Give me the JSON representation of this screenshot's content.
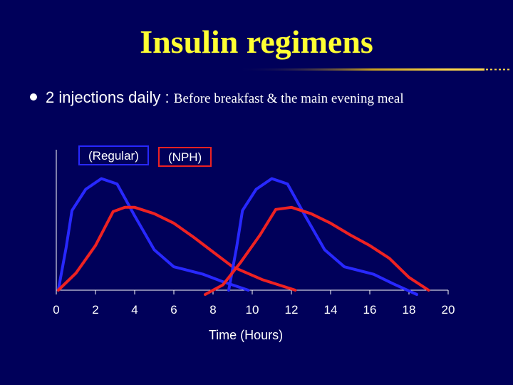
{
  "title": "Insulin regimens",
  "bullet": {
    "main": "2 injections daily : ",
    "detail": "Before breakfast  & the main evening meal"
  },
  "colors": {
    "background": "#00005a",
    "title": "#ffff33",
    "regular": "#2828ff",
    "nph": "#ee2222"
  },
  "chart_data": {
    "type": "line",
    "xlabel": "Time (Hours)",
    "ylabel": "",
    "xlim": [
      0,
      20
    ],
    "ylim": [
      0,
      1
    ],
    "xticks": [
      0,
      2,
      4,
      6,
      8,
      10,
      12,
      14,
      16,
      18,
      20
    ],
    "series": [
      {
        "name": "(Regular)",
        "color": "#2828ff",
        "points": [
          [
            0.1,
            0.0
          ],
          [
            0.5,
            0.4
          ],
          [
            0.8,
            0.75
          ],
          [
            1.5,
            0.95
          ],
          [
            2.3,
            1.05
          ],
          [
            3.1,
            1.0
          ],
          [
            4.0,
            0.7
          ],
          [
            5.0,
            0.38
          ],
          [
            6.0,
            0.22
          ],
          [
            7.5,
            0.15
          ],
          [
            8.5,
            0.08
          ],
          [
            9.8,
            0.0
          ]
        ]
      },
      {
        "name": "(NPH)",
        "color": "#ee2222",
        "points": [
          [
            0.1,
            0.0
          ],
          [
            1.0,
            0.16
          ],
          [
            2.0,
            0.42
          ],
          [
            2.9,
            0.74
          ],
          [
            3.5,
            0.78
          ],
          [
            4.0,
            0.78
          ],
          [
            5.0,
            0.72
          ],
          [
            6.0,
            0.63
          ],
          [
            7.0,
            0.5
          ],
          [
            8.0,
            0.36
          ],
          [
            9.0,
            0.22
          ],
          [
            10.5,
            0.1
          ],
          [
            12.2,
            0.0
          ]
        ]
      },
      {
        "name": "(Regular)",
        "color": "#2828ff",
        "points": [
          [
            8.8,
            0.0
          ],
          [
            9.2,
            0.4
          ],
          [
            9.5,
            0.75
          ],
          [
            10.2,
            0.95
          ],
          [
            11.0,
            1.05
          ],
          [
            11.8,
            1.0
          ],
          [
            12.7,
            0.7
          ],
          [
            13.7,
            0.38
          ],
          [
            14.7,
            0.22
          ],
          [
            16.2,
            0.15
          ],
          [
            17.2,
            0.06
          ],
          [
            18.4,
            -0.04
          ]
        ]
      },
      {
        "name": "(NPH)",
        "color": "#ee2222",
        "points": [
          [
            7.6,
            -0.04
          ],
          [
            8.0,
            0.0
          ],
          [
            8.5,
            0.05
          ],
          [
            9.4,
            0.26
          ],
          [
            10.4,
            0.52
          ],
          [
            11.2,
            0.76
          ],
          [
            12.0,
            0.78
          ],
          [
            13.0,
            0.72
          ],
          [
            14.0,
            0.63
          ],
          [
            15.0,
            0.52
          ],
          [
            16.0,
            0.42
          ],
          [
            17.0,
            0.3
          ],
          [
            18.0,
            0.12
          ],
          [
            19.0,
            0.0
          ]
        ]
      }
    ],
    "legend": [
      {
        "label": "(Regular)",
        "color": "#2828ff"
      },
      {
        "label": "(NPH)",
        "color": "#ee2222"
      }
    ]
  }
}
